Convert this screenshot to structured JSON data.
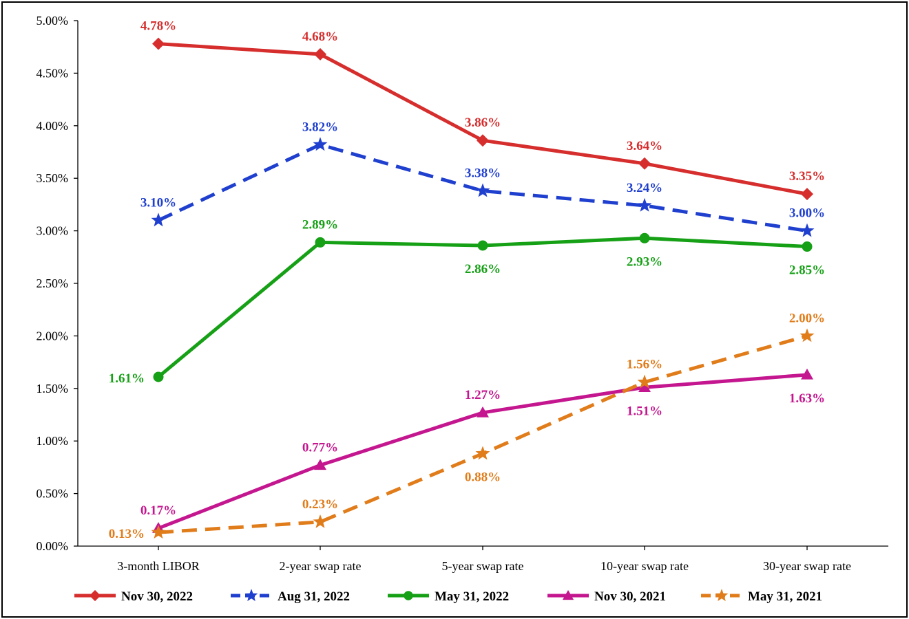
{
  "chart_data": {
    "type": "line",
    "title": "",
    "xlabel": "",
    "ylabel": "",
    "ylim": [
      0,
      5
    ],
    "y_ticks": [
      "0.00%",
      "0.50%",
      "1.00%",
      "1.50%",
      "2.00%",
      "2.50%",
      "3.00%",
      "3.50%",
      "4.00%",
      "4.50%",
      "5.00%"
    ],
    "categories": [
      "3-month LIBOR",
      "2-year swap rate",
      "5-year swap rate",
      "10-year swap rate",
      "30-year swap rate"
    ],
    "grid": false,
    "legend_position": "bottom",
    "series": [
      {
        "name": "Nov 30, 2022",
        "color": "#d62d2d",
        "dash": "solid",
        "marker": "diamond",
        "values": [
          4.78,
          4.68,
          3.86,
          3.64,
          3.35
        ],
        "labels": [
          "4.78%",
          "4.68%",
          "3.86%",
          "3.64%",
          "3.35%"
        ],
        "label_pos": [
          "above",
          "above",
          "above",
          "above",
          "above"
        ]
      },
      {
        "name": "Aug 31, 2022",
        "color": "#1f3fcf",
        "dash": "dashed",
        "marker": "star",
        "values": [
          3.1,
          3.82,
          3.38,
          3.24,
          3.0
        ],
        "labels": [
          "3.10%",
          "3.82%",
          "3.38%",
          "3.24%",
          "3.00%"
        ],
        "label_pos": [
          "above",
          "above",
          "above",
          "above",
          "above"
        ]
      },
      {
        "name": "May 31, 2022",
        "color": "#16a016",
        "dash": "solid",
        "marker": "circle",
        "values": [
          1.61,
          2.89,
          2.86,
          2.93,
          2.85
        ],
        "labels": [
          "1.61%",
          "2.89%",
          "2.86%",
          "2.93%",
          "2.85%"
        ],
        "label_pos": [
          "left",
          "above",
          "below",
          "below",
          "below"
        ]
      },
      {
        "name": "Nov 30, 2021",
        "color": "#c4168f",
        "dash": "solid",
        "marker": "triangle",
        "values": [
          0.17,
          0.77,
          1.27,
          1.51,
          1.63
        ],
        "labels": [
          "0.17%",
          "0.77%",
          "1.27%",
          "1.51%",
          "1.63%"
        ],
        "label_pos": [
          "above",
          "above",
          "above",
          "below",
          "below"
        ]
      },
      {
        "name": "May 31, 2021",
        "color": "#e07c1a",
        "dash": "dashed",
        "marker": "star",
        "values": [
          0.13,
          0.23,
          0.88,
          1.56,
          2.0
        ],
        "labels": [
          "0.13%",
          "0.23%",
          "0.88%",
          "1.56%",
          "2.00%"
        ],
        "label_pos": [
          "left",
          "above",
          "below",
          "above",
          "above"
        ]
      }
    ]
  }
}
